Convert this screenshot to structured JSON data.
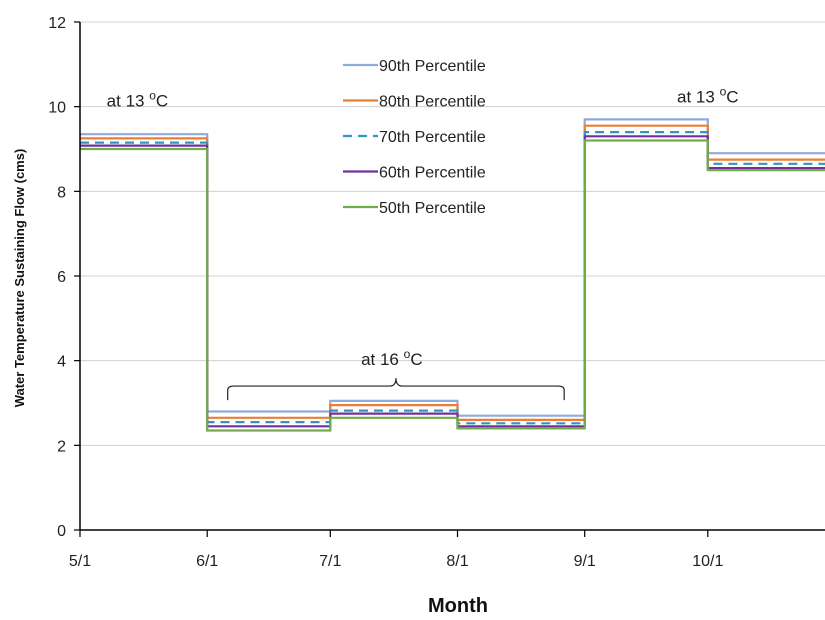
{
  "chart_data": {
    "type": "line",
    "xlabel": "Month",
    "ylabel": "Water Temperature Sustaining Flow (cms)",
    "ylim": [
      0,
      12
    ],
    "yticks": [
      "0",
      "2",
      "4",
      "6",
      "8",
      "10",
      "12"
    ],
    "x_tick_labels": [
      "5/1",
      "6/1",
      "7/1",
      "8/1",
      "9/1",
      "10/1"
    ],
    "x_start": "5/1",
    "x_end": "10/31",
    "grid": "horizontal",
    "legend": "top-center",
    "step_edges": [
      "5/1",
      "6/1",
      "7/1",
      "8/1",
      "9/1",
      "10/1",
      "10/31"
    ],
    "series": [
      {
        "name": "90th Percentile",
        "color": "#8faadc",
        "dash": "solid",
        "values": [
          9.35,
          2.8,
          3.05,
          2.7,
          9.7,
          8.9
        ]
      },
      {
        "name": "80th Percentile",
        "color": "#ed7d31",
        "dash": "solid",
        "values": [
          9.25,
          2.65,
          2.95,
          2.6,
          9.55,
          8.75
        ]
      },
      {
        "name": "70th Percentile",
        "color": "#2e95c7",
        "dash": "dashed",
        "values": [
          9.15,
          2.55,
          2.82,
          2.52,
          9.4,
          8.65
        ]
      },
      {
        "name": "60th Percentile",
        "color": "#7030a0",
        "dash": "solid",
        "values": [
          9.08,
          2.45,
          2.75,
          2.45,
          9.3,
          8.55
        ]
      },
      {
        "name": "50th Percentile",
        "color": "#70ad47",
        "dash": "solid",
        "values": [
          9.0,
          2.35,
          2.65,
          2.4,
          9.2,
          8.5
        ]
      }
    ],
    "annotations": [
      {
        "text": "at 13 °C",
        "base": "at 13 ",
        "sup": "o",
        "unit": "C",
        "x": "5/15",
        "y": 10.0
      },
      {
        "text": "at 16 °C",
        "base": "at 16 ",
        "sup": "o",
        "unit": "C",
        "x": "7/16",
        "y": 3.9
      },
      {
        "text": "at 13 °C",
        "base": "at 13 ",
        "sup": "o",
        "unit": "C",
        "x": "10/1",
        "y": 10.1
      }
    ],
    "bracket": {
      "x_from": "6/6",
      "x_to": "8/27",
      "y": 3.4
    }
  }
}
